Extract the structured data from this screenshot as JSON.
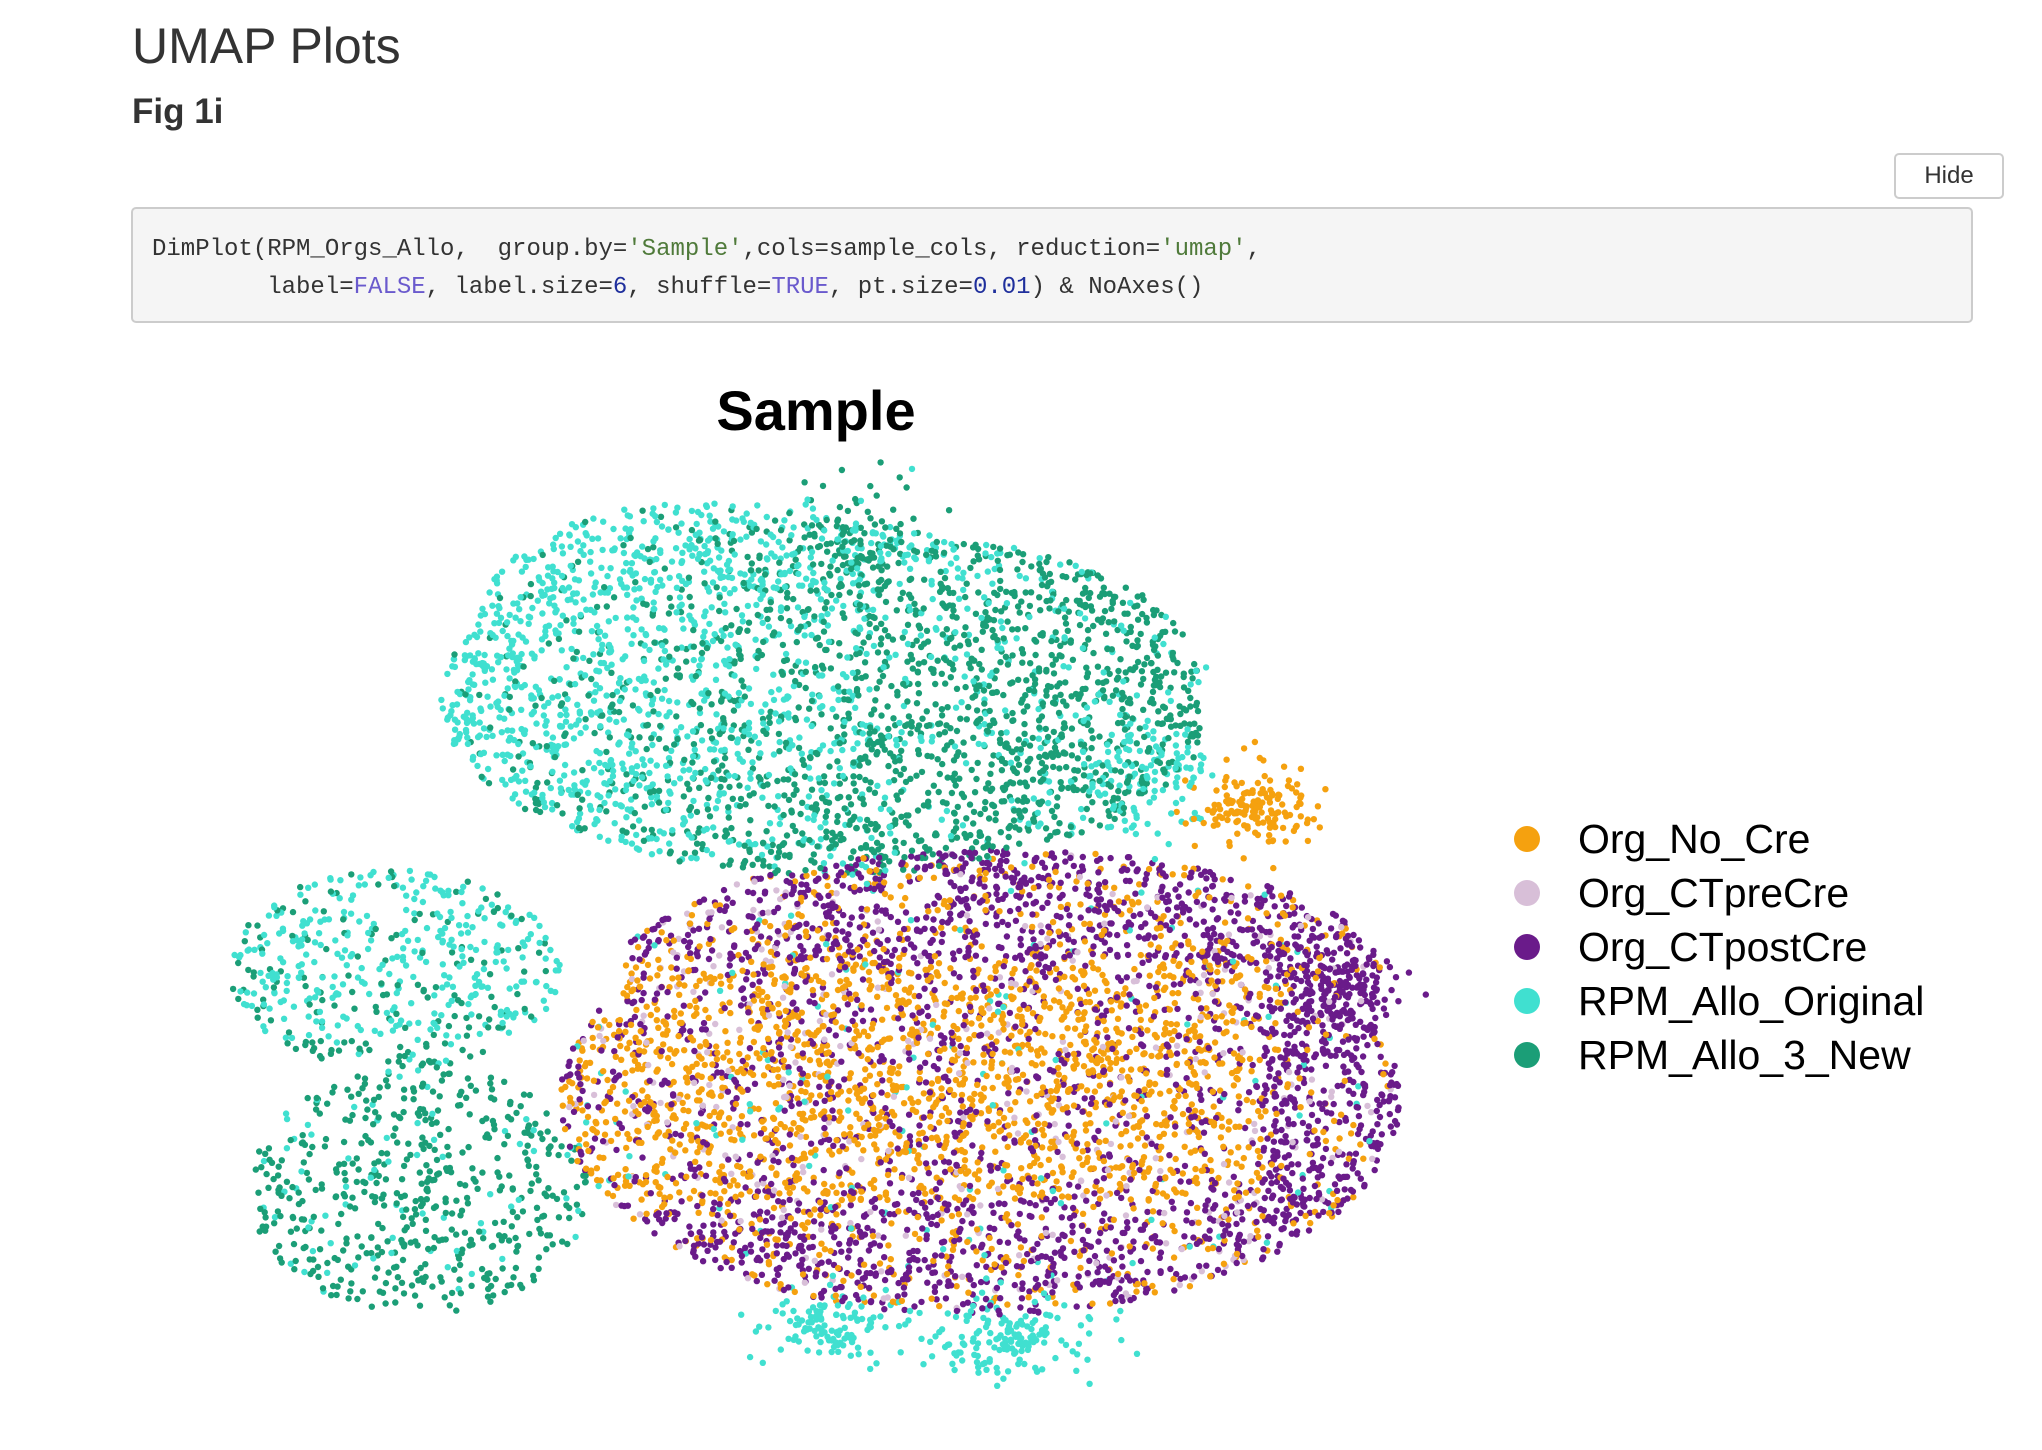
{
  "page": {
    "title": "UMAP Plots",
    "subtitle": "Fig 1i"
  },
  "hide_button": {
    "label": "Hide"
  },
  "code": {
    "line1": {
      "p1": "DimPlot(RPM_Orgs_Allo,  group.by=",
      "s1": "'Sample'",
      "p2": ",cols=sample_cols, reduction=",
      "s2": "'umap'",
      "p3": ","
    },
    "line2": {
      "p1": "        label=",
      "c1": "FALSE",
      "p2": ", label.size=",
      "n1": "6",
      "p3": ", shuffle=",
      "c2": "TRUE",
      "p4": ", pt.size=",
      "n2": "0.01",
      "p5": ") & NoAxes()"
    },
    "colors": {
      "background": "#f5f5f5",
      "string": "#4f7a3a",
      "constant": "#6a5acd",
      "number": "#1f2f9c"
    }
  },
  "chart_data": {
    "type": "scatter",
    "title": "Sample",
    "axes_shown": false,
    "grid": false,
    "legend_position": "right",
    "point_size": 0.01,
    "series": [
      {
        "name": "Org_No_Cre",
        "color": "#f5a10f"
      },
      {
        "name": "Org_CTpreCre",
        "color": "#d8bfd8"
      },
      {
        "name": "Org_CTpostCre",
        "color": "#6a1b8a"
      },
      {
        "name": "RPM_Allo_Original",
        "color": "#40e0d0"
      },
      {
        "name": "RPM_Allo_3_New",
        "color": "#1b9e77"
      }
    ]
  }
}
